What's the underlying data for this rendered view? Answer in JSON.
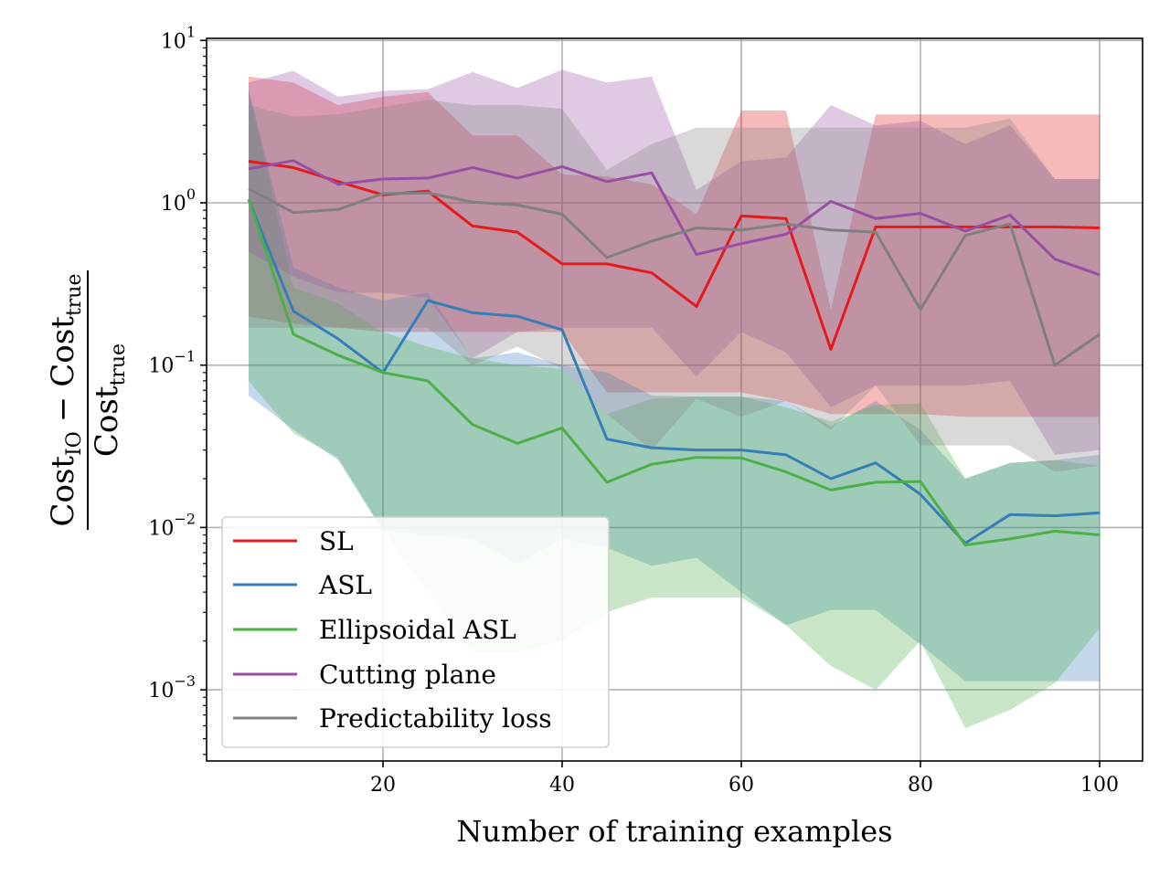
{
  "chart_data": {
    "type": "line",
    "title": "",
    "xlabel": "Number of training examples",
    "ylabel": {
      "numerator_main_1": "Cost",
      "numerator_sub_1": "IO",
      "numerator_minus": "−",
      "numerator_main_2": "Cost",
      "numerator_sub_2": "true",
      "denominator_main": "Cost",
      "denominator_sub": "true"
    },
    "yscale": "log",
    "xlim": [
      0,
      105
    ],
    "ylim": [
      0.00035,
      11
    ],
    "x_ticks": [
      20,
      40,
      60,
      80,
      100
    ],
    "x_tick_labels": [
      "20",
      "40",
      "60",
      "80",
      "100"
    ],
    "y_ticks": [
      {
        "value": 10,
        "base": "10",
        "exp": "1"
      },
      {
        "value": 1,
        "base": "10",
        "exp": "0"
      },
      {
        "value": 0.1,
        "base": "10",
        "exp": "−1"
      },
      {
        "value": 0.01,
        "base": "10",
        "exp": "−2"
      },
      {
        "value": 0.001,
        "base": "10",
        "exp": "−3"
      }
    ],
    "grid": true,
    "legend_position": "lower-left",
    "x": [
      5,
      10,
      15,
      20,
      25,
      30,
      35,
      40,
      45,
      50,
      55,
      60,
      65,
      70,
      75,
      80,
      85,
      90,
      95,
      100
    ],
    "series": [
      {
        "name": "SL",
        "color": "#e41a1c",
        "values": [
          1.8,
          1.65,
          1.35,
          1.12,
          1.18,
          0.72,
          0.66,
          0.42,
          0.42,
          0.37,
          0.23,
          0.83,
          0.8,
          0.125,
          0.71,
          0.71,
          0.71,
          0.71,
          0.71,
          0.7
        ],
        "upper": [
          6.0,
          5.5,
          4.0,
          4.5,
          4.8,
          2.6,
          2.6,
          1.5,
          1.45,
          1.3,
          0.85,
          3.7,
          3.7,
          0.22,
          3.5,
          3.5,
          3.5,
          3.5,
          3.5,
          3.5
        ],
        "lower": [
          0.2,
          0.18,
          0.17,
          0.16,
          0.16,
          0.16,
          0.16,
          0.16,
          0.068,
          0.068,
          0.068,
          0.068,
          0.06,
          0.05,
          0.05,
          0.05,
          0.048,
          0.048,
          0.048,
          0.048
        ]
      },
      {
        "name": "ASL",
        "color": "#377eb8",
        "values": [
          1.05,
          0.215,
          0.145,
          0.09,
          0.25,
          0.21,
          0.2,
          0.165,
          0.035,
          0.031,
          0.03,
          0.03,
          0.028,
          0.02,
          0.025,
          0.016,
          0.008,
          0.012,
          0.0118,
          0.0123
        ],
        "upper": [
          5.0,
          0.4,
          0.3,
          0.25,
          0.28,
          0.11,
          0.12,
          0.1,
          0.09,
          0.065,
          0.064,
          0.064,
          0.06,
          0.042,
          0.06,
          0.04,
          0.02,
          0.025,
          0.026,
          0.028
        ],
        "lower": [
          0.065,
          0.04,
          0.026,
          0.0095,
          0.009,
          0.0085,
          0.006,
          0.0085,
          0.0075,
          0.0058,
          0.0065,
          0.004,
          0.0025,
          0.0031,
          0.0031,
          0.0019,
          0.00113,
          0.00113,
          0.00113,
          0.00113
        ]
      },
      {
        "name": "Ellipsoidal ASL",
        "color": "#4daf4a",
        "values": [
          1.05,
          0.155,
          0.115,
          0.09,
          0.08,
          0.043,
          0.033,
          0.041,
          0.019,
          0.0245,
          0.027,
          0.0268,
          0.022,
          0.017,
          0.019,
          0.0192,
          0.0078,
          0.0085,
          0.0095,
          0.009
        ],
        "upper": [
          5.0,
          0.3,
          0.24,
          0.16,
          0.13,
          0.11,
          0.1,
          0.095,
          0.05,
          0.062,
          0.064,
          0.064,
          0.055,
          0.045,
          0.057,
          0.058,
          0.02,
          0.025,
          0.026,
          0.024
        ],
        "lower": [
          0.08,
          0.038,
          0.027,
          0.0095,
          0.004,
          0.0017,
          0.0017,
          0.002,
          0.003,
          0.0037,
          0.0037,
          0.0037,
          0.0025,
          0.0014,
          0.001,
          0.002,
          0.00058,
          0.00075,
          0.0011,
          0.0024
        ]
      },
      {
        "name": "Cutting plane",
        "color": "#984ea3",
        "values": [
          1.62,
          1.82,
          1.3,
          1.4,
          1.42,
          1.65,
          1.42,
          1.67,
          1.35,
          1.53,
          0.48,
          0.56,
          0.64,
          1.02,
          0.8,
          0.86,
          0.67,
          0.84,
          0.45,
          0.36
        ],
        "upper": [
          5.5,
          6.5,
          4.5,
          4.9,
          5.0,
          6.4,
          5.1,
          6.6,
          5.5,
          6.0,
          1.2,
          1.8,
          1.9,
          4.0,
          3.0,
          3.2,
          2.3,
          3.0,
          1.4,
          1.4
        ],
        "lower": [
          0.5,
          0.35,
          0.28,
          0.28,
          0.26,
          0.11,
          0.16,
          0.17,
          0.17,
          0.17,
          0.085,
          0.16,
          0.12,
          0.055,
          0.075,
          0.075,
          0.075,
          0.08,
          0.028,
          0.03
        ]
      },
      {
        "name": "Predictability loss",
        "color": "#808080",
        "values": [
          1.22,
          0.87,
          0.91,
          1.14,
          1.15,
          1.01,
          0.97,
          0.85,
          0.46,
          0.58,
          0.7,
          0.68,
          0.74,
          0.68,
          0.66,
          0.22,
          0.63,
          0.74,
          0.1,
          0.155
        ],
        "upper": [
          4.0,
          3.4,
          3.5,
          3.9,
          4.3,
          4.0,
          4.0,
          3.8,
          1.6,
          2.3,
          2.9,
          2.9,
          2.9,
          2.9,
          2.9,
          2.9,
          2.9,
          3.3,
          1.4,
          1.4
        ],
        "lower": [
          0.17,
          0.17,
          0.17,
          0.17,
          0.17,
          0.1,
          0.13,
          0.095,
          0.05,
          0.03,
          0.062,
          0.048,
          0.06,
          0.04,
          0.075,
          0.032,
          0.032,
          0.032,
          0.022,
          0.024
        ]
      }
    ]
  }
}
